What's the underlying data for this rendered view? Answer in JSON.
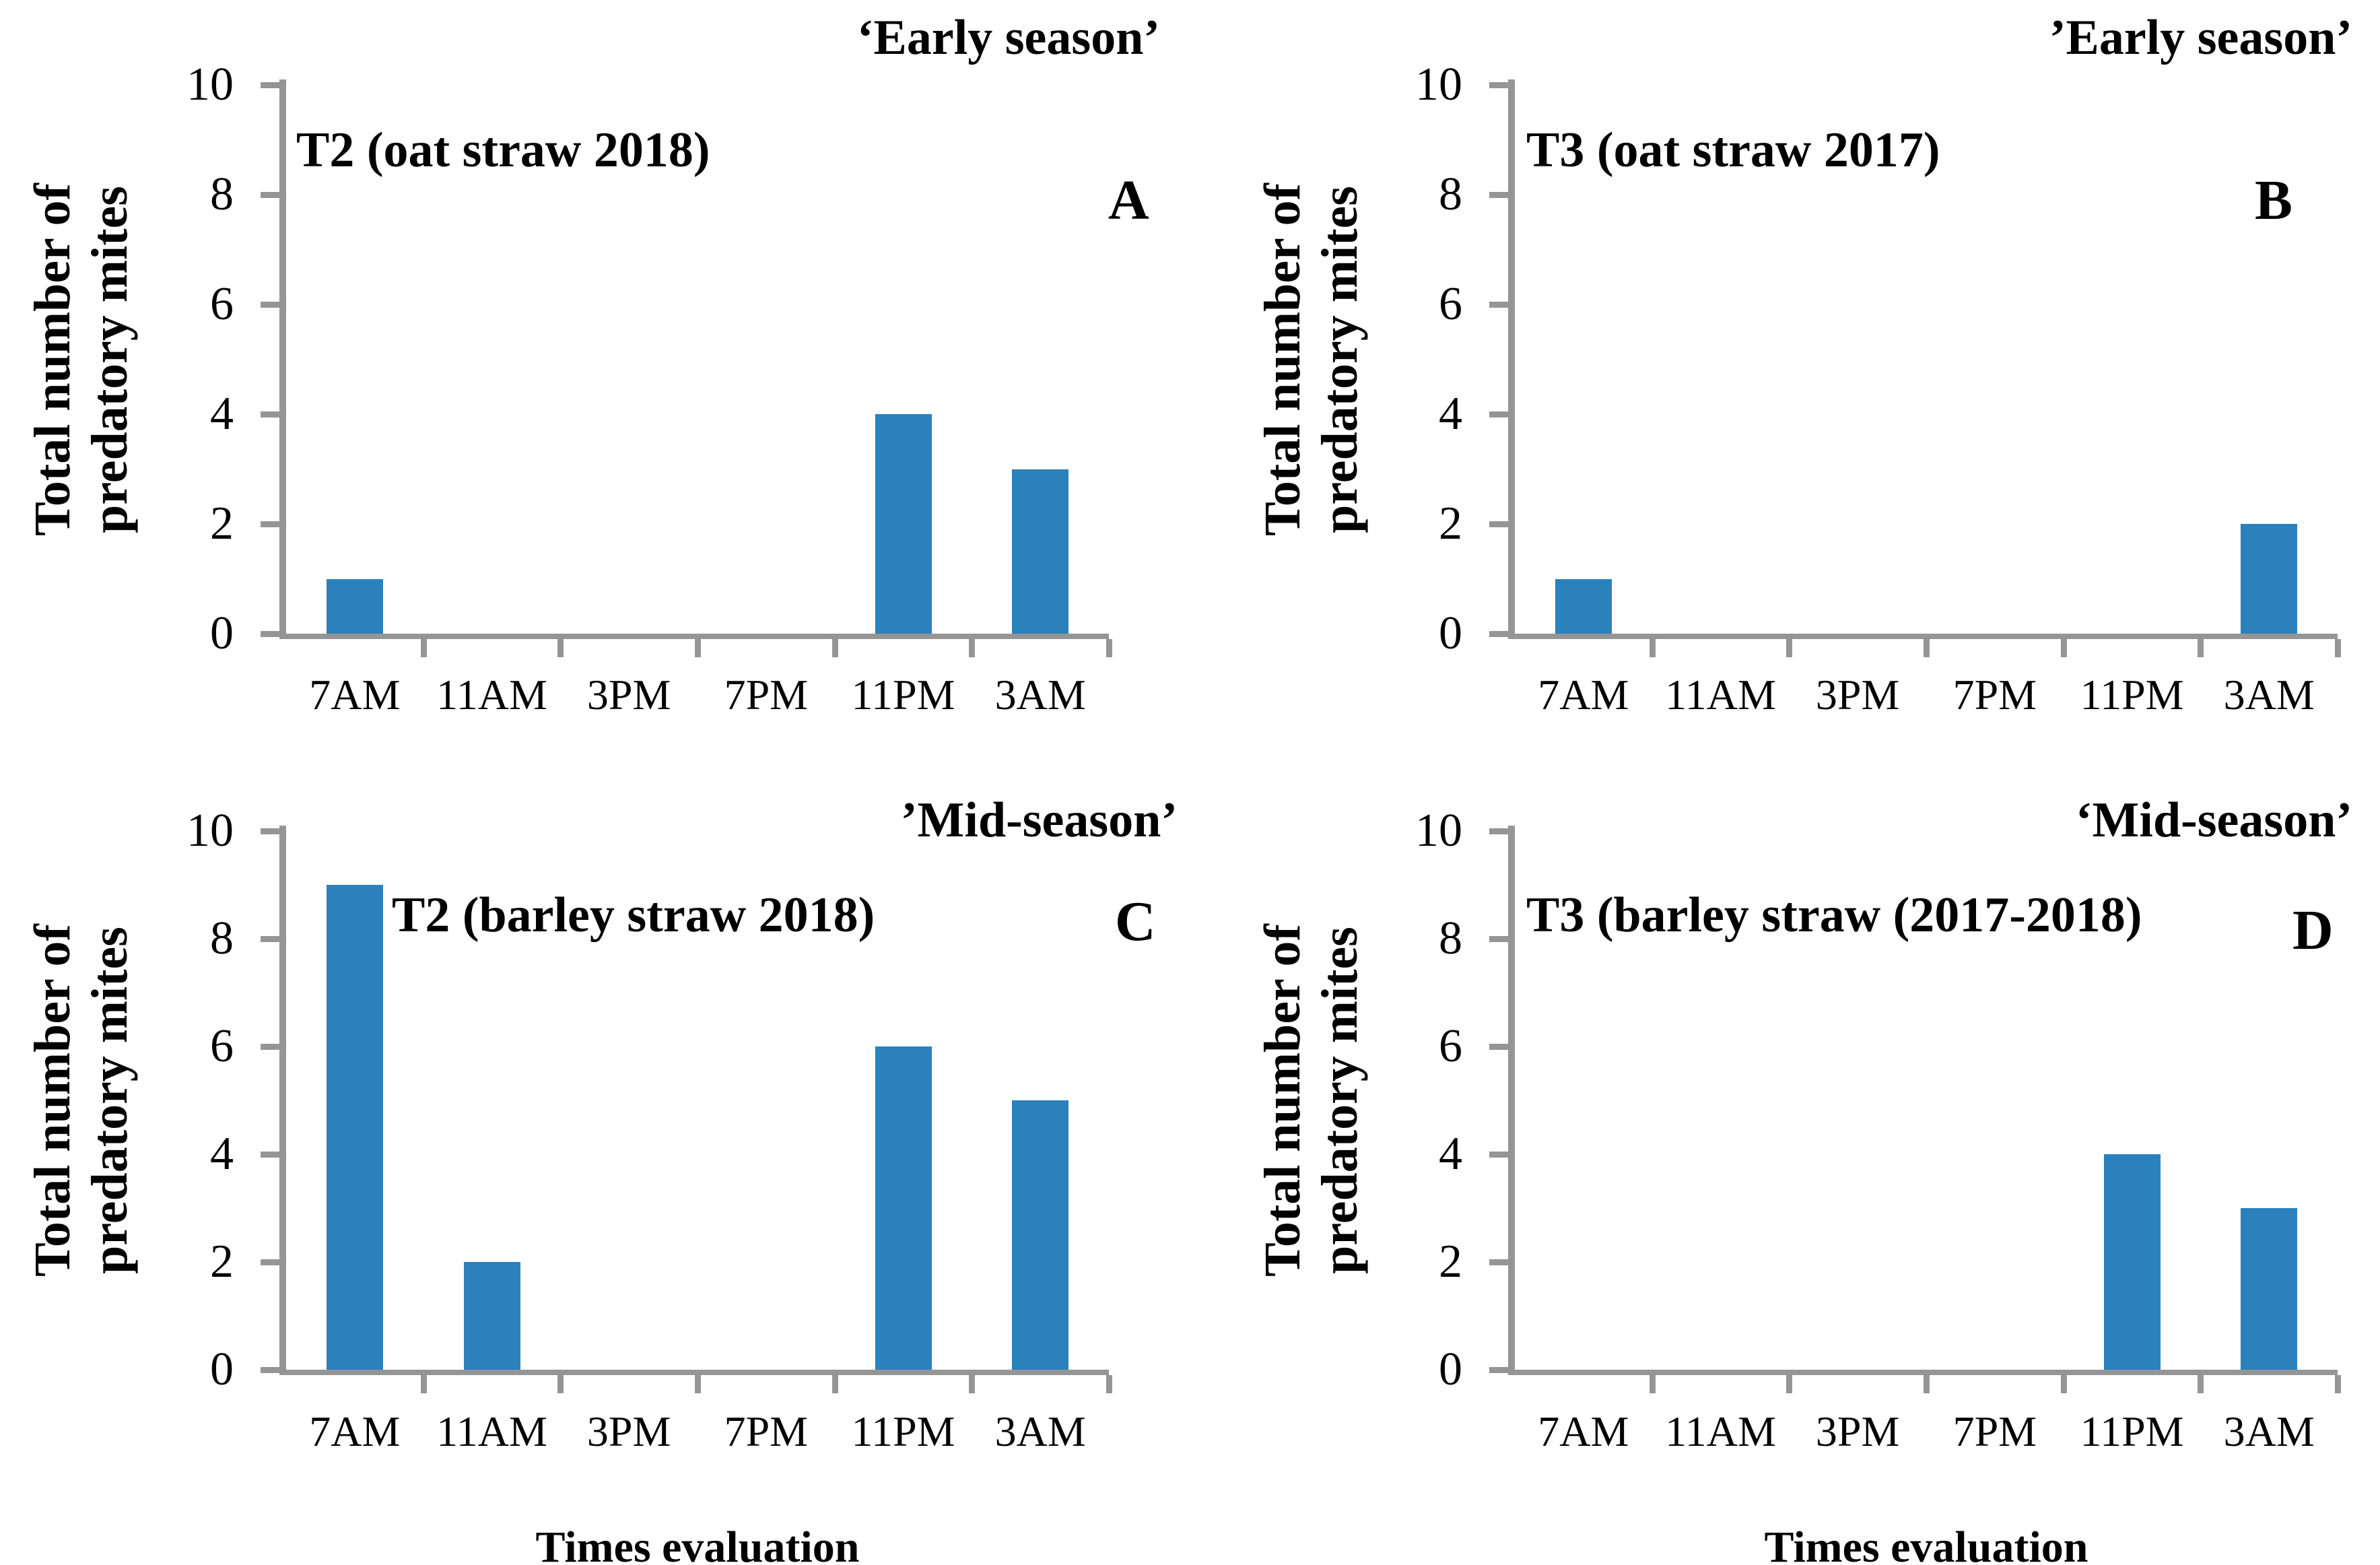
{
  "figure": {
    "background": "#ffffff",
    "bar_color": "#2a81bc",
    "axis_color": "#959595",
    "text_color": "#000000",
    "y_axis_label_line1": "Total number of",
    "y_axis_label_line2": "predatory mites",
    "x_axis_label": "Times evaluation"
  },
  "chart_data": [
    {
      "type": "bar",
      "panel_letter": "A",
      "season_label": "‘Early season’",
      "title": "T2 (oat straw 2018)",
      "categories": [
        "7AM",
        "11AM",
        "3PM",
        "7PM",
        "11PM",
        "3AM"
      ],
      "values": [
        1,
        0,
        0,
        0,
        4,
        3
      ],
      "xlabel": "",
      "ylabel": "Total number of predatory mites",
      "ylim": [
        0,
        10
      ],
      "yticks": [
        0,
        2,
        4,
        6,
        8,
        10
      ],
      "grid": false,
      "legend": "none"
    },
    {
      "type": "bar",
      "panel_letter": "B",
      "season_label": "’Early season’",
      "title": "T3 (oat straw 2017)",
      "categories": [
        "7AM",
        "11AM",
        "3PM",
        "7PM",
        "11PM",
        "3AM"
      ],
      "values": [
        1,
        0,
        0,
        0,
        0,
        2
      ],
      "xlabel": "",
      "ylabel": "Total number of predatory mites",
      "ylim": [
        0,
        10
      ],
      "yticks": [
        0,
        2,
        4,
        6,
        8,
        10
      ],
      "grid": false,
      "legend": "none"
    },
    {
      "type": "bar",
      "panel_letter": "C",
      "season_label": "’Mid-season’",
      "title": "T2 (barley straw 2018)",
      "categories": [
        "7AM",
        "11AM",
        "3PM",
        "7PM",
        "11PM",
        "3AM"
      ],
      "values": [
        9,
        2,
        0,
        0,
        6,
        5
      ],
      "xlabel": "Times evaluation",
      "ylabel": "Total number of predatory mites",
      "ylim": [
        0,
        10
      ],
      "yticks": [
        0,
        2,
        4,
        6,
        8,
        10
      ],
      "grid": false,
      "legend": "none"
    },
    {
      "type": "bar",
      "panel_letter": "D",
      "season_label": "‘Mid-season’",
      "title": "T3 (barley straw (2017-2018)",
      "categories": [
        "7AM",
        "11AM",
        "3PM",
        "7PM",
        "11PM",
        "3AM"
      ],
      "values": [
        0,
        0,
        0,
        0,
        4,
        3
      ],
      "xlabel": "Times evaluation",
      "ylabel": "Total number of predatory mites",
      "ylim": [
        0,
        10
      ],
      "yticks": [
        0,
        2,
        4,
        6,
        8,
        10
      ],
      "grid": false,
      "legend": "none"
    }
  ]
}
